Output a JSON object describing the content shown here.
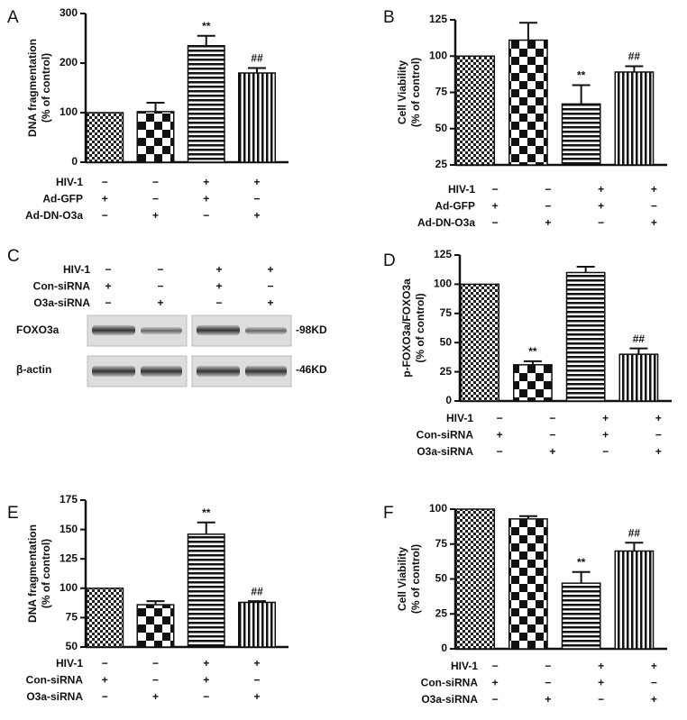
{
  "chart_data": [
    {
      "type": "bar",
      "panel": "A",
      "ylabel": [
        "DNA fragmentation",
        "(% of control)"
      ],
      "values": [
        100,
        102,
        235,
        180
      ],
      "errors": [
        0,
        18,
        20,
        10
      ],
      "annotations": [
        {
          "index": 2,
          "text": "**"
        },
        {
          "index": 3,
          "text": "##"
        }
      ],
      "ylim": [
        0,
        300
      ],
      "yticks": [
        0,
        100,
        200,
        300
      ],
      "conditions": [
        {
          "label": "HIV-1",
          "signs": [
            "−",
            "−",
            "+",
            "+"
          ]
        },
        {
          "label": "Ad-GFP",
          "signs": [
            "+",
            "−",
            "+",
            "−"
          ]
        },
        {
          "label": "Ad-DN-O3a",
          "signs": [
            "−",
            "+",
            "−",
            "+"
          ]
        }
      ]
    },
    {
      "type": "bar",
      "panel": "B",
      "ylabel": [
        "Cell Viability",
        "(% of control)"
      ],
      "values": [
        100,
        111,
        67,
        89
      ],
      "errors": [
        0,
        12,
        13,
        4
      ],
      "annotations": [
        {
          "index": 2,
          "text": "**"
        },
        {
          "index": 3,
          "text": "##"
        }
      ],
      "ylim": [
        25,
        125
      ],
      "yticks": [
        25,
        50,
        75,
        100,
        125
      ],
      "conditions": [
        {
          "label": "HIV-1",
          "signs": [
            "−",
            "−",
            "+",
            "+"
          ]
        },
        {
          "label": "Ad-GFP",
          "signs": [
            "+",
            "−",
            "+",
            "−"
          ]
        },
        {
          "label": "Ad-DN-O3a",
          "signs": [
            "−",
            "+",
            "−",
            "+"
          ]
        }
      ]
    },
    {
      "type": "bar",
      "panel": "D",
      "ylabel": [
        "p-FOXO3a/FOXO3a",
        "(% of control)"
      ],
      "values": [
        100,
        31,
        110,
        40
      ],
      "errors": [
        0,
        3,
        5,
        5
      ],
      "annotations": [
        {
          "index": 1,
          "text": "**"
        },
        {
          "index": 3,
          "text": "##"
        }
      ],
      "ylim": [
        0,
        125
      ],
      "yticks": [
        0,
        25,
        50,
        75,
        100,
        125
      ],
      "conditions": [
        {
          "label": "HIV-1",
          "signs": [
            "−",
            "−",
            "+",
            "+"
          ]
        },
        {
          "label": "Con-siRNA",
          "signs": [
            "+",
            "−",
            "+",
            "−"
          ]
        },
        {
          "label": "O3a-siRNA",
          "signs": [
            "−",
            "+",
            "−",
            "+"
          ]
        }
      ]
    },
    {
      "type": "bar",
      "panel": "E",
      "ylabel": [
        "DNA fragmentation",
        "(% of control)"
      ],
      "values": [
        100,
        86,
        146,
        88
      ],
      "errors": [
        0,
        3,
        10,
        1
      ],
      "annotations": [
        {
          "index": 2,
          "text": "**"
        },
        {
          "index": 3,
          "text": "##"
        }
      ],
      "ylim": [
        50,
        175
      ],
      "yticks": [
        50,
        75,
        100,
        125,
        150,
        175
      ],
      "conditions": [
        {
          "label": "HIV-1",
          "signs": [
            "−",
            "−",
            "+",
            "+"
          ]
        },
        {
          "label": "Con-siRNA",
          "signs": [
            "+",
            "−",
            "+",
            "−"
          ]
        },
        {
          "label": "O3a-siRNA",
          "signs": [
            "−",
            "+",
            "−",
            "+"
          ]
        }
      ]
    },
    {
      "type": "bar",
      "panel": "F",
      "ylabel": [
        "Cell Viability",
        "(% of control)"
      ],
      "values": [
        100,
        93,
        47,
        70
      ],
      "errors": [
        0,
        2,
        8,
        6
      ],
      "annotations": [
        {
          "index": 2,
          "text": "**"
        },
        {
          "index": 3,
          "text": "##"
        }
      ],
      "ylim": [
        0,
        100
      ],
      "yticks": [
        0,
        25,
        50,
        75,
        100
      ],
      "conditions": [
        {
          "label": "HIV-1",
          "signs": [
            "−",
            "−",
            "+",
            "+"
          ]
        },
        {
          "label": "Con-siRNA",
          "signs": [
            "+",
            "−",
            "+",
            "−"
          ]
        },
        {
          "label": "O3a-siRNA",
          "signs": [
            "−",
            "+",
            "−",
            "+"
          ]
        }
      ]
    }
  ],
  "blot": {
    "panel": "C",
    "conditions": [
      {
        "label": "HIV-1",
        "signs": [
          "−",
          "−",
          "+",
          "+"
        ]
      },
      {
        "label": "Con-siRNA",
        "signs": [
          "+",
          "−",
          "+",
          "−"
        ]
      },
      {
        "label": "O3a-siRNA",
        "signs": [
          "−",
          "+",
          "−",
          "+"
        ]
      }
    ],
    "rows": [
      {
        "label": "FOXO3a",
        "size": "-98KD"
      },
      {
        "label": "β-actin",
        "size": "-46KD"
      }
    ]
  }
}
